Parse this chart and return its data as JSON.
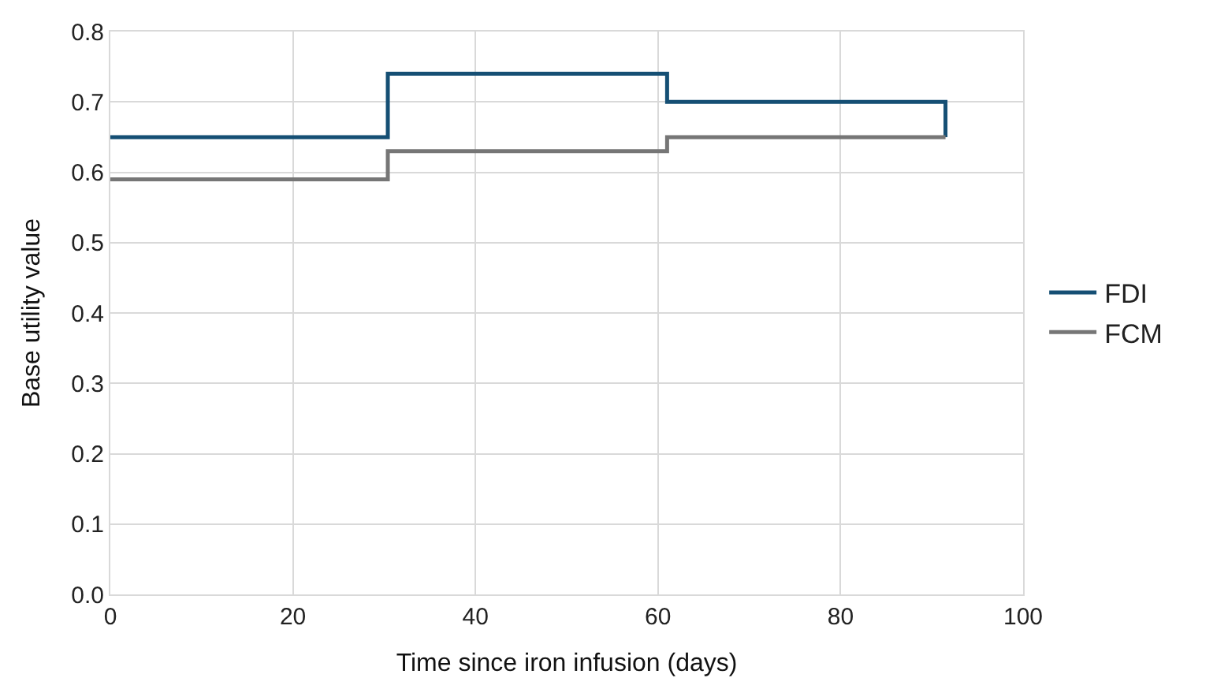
{
  "chart_data": {
    "type": "step",
    "xlabel": "Time since iron infusion (days)",
    "ylabel": "Base utility value",
    "xlim": [
      0,
      100
    ],
    "xticks": [
      0,
      20,
      40,
      60,
      80,
      100
    ],
    "ylim": [
      0,
      0.8
    ],
    "yticks": [
      {
        "value": 0,
        "label": "0.0"
      },
      0.1,
      0.2,
      0.3,
      0.4,
      0.5,
      0.6,
      0.7,
      0.8
    ],
    "grid": true,
    "legend": "right",
    "marker": "none",
    "line_style": "solid",
    "series": [
      {
        "name": "FDI",
        "color": "#154f74",
        "x": [
          0,
          30.4,
          61,
          91.5
        ],
        "values": [
          0.65,
          0.74,
          0.7,
          0.65
        ]
      },
      {
        "name": "FCM",
        "color": "#767676",
        "x": [
          0,
          30.4,
          61,
          91.5
        ],
        "values": [
          0.59,
          0.63,
          0.65,
          0.65
        ]
      }
    ]
  }
}
